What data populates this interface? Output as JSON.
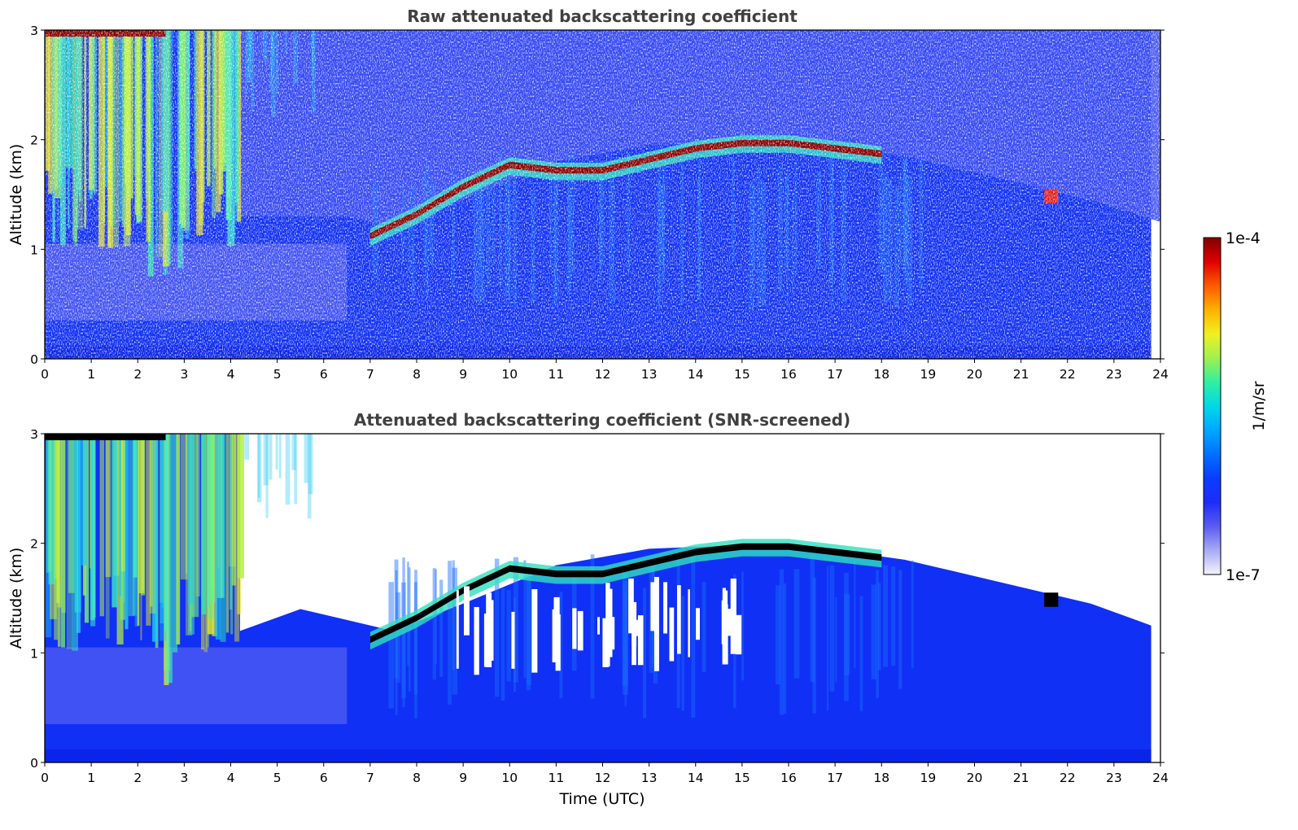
{
  "chart_data": [
    {
      "type": "heatmap",
      "title": "Raw attenuated backscattering coefficient",
      "xlabel": "",
      "ylabel": "Altitude (km)",
      "xlim": [
        0,
        24
      ],
      "ylim": [
        0,
        3
      ],
      "xticks": [
        0,
        1,
        2,
        3,
        4,
        5,
        6,
        7,
        8,
        9,
        10,
        11,
        12,
        13,
        14,
        15,
        16,
        17,
        18,
        19,
        20,
        21,
        22,
        23,
        24
      ],
      "yticks": [
        0,
        1,
        2,
        3
      ],
      "data_extent_x": [
        0,
        23.8
      ],
      "cloud_layer_top_km": [
        {
          "time": 7.0,
          "altitude": 1.15
        },
        {
          "time": 8.0,
          "altitude": 1.35
        },
        {
          "time": 9.0,
          "altitude": 1.6
        },
        {
          "time": 10.0,
          "altitude": 1.8
        },
        {
          "time": 11.0,
          "altitude": 1.75
        },
        {
          "time": 12.0,
          "altitude": 1.75
        },
        {
          "time": 13.0,
          "altitude": 1.85
        },
        {
          "time": 14.0,
          "altitude": 1.95
        },
        {
          "time": 15.0,
          "altitude": 2.0
        },
        {
          "time": 16.0,
          "altitude": 2.0
        },
        {
          "time": 17.0,
          "altitude": 1.95
        },
        {
          "time": 18.0,
          "altitude": 1.9
        }
      ],
      "screening": "raw"
    },
    {
      "type": "heatmap",
      "title": "Attenuated backscattering coefficient (SNR-screened)",
      "xlabel": "Time (UTC)",
      "ylabel": "Altitude (km)",
      "xlim": [
        0,
        24
      ],
      "ylim": [
        0,
        3
      ],
      "xticks": [
        0,
        1,
        2,
        3,
        4,
        5,
        6,
        7,
        8,
        9,
        10,
        11,
        12,
        13,
        14,
        15,
        16,
        17,
        18,
        19,
        20,
        21,
        22,
        23,
        24
      ],
      "yticks": [
        0,
        1,
        2,
        3
      ],
      "data_extent_x": [
        0,
        23.8
      ],
      "screening": "snr"
    }
  ],
  "colorbar": {
    "label": "1/m/sr",
    "max_label": "1e-4",
    "min_label": "1e-7",
    "colormap": [
      "#f4f4fc",
      "#a8aaf4",
      "#5a5cf0",
      "#1e2cf8",
      "#0a3cff",
      "#0070ff",
      "#00a8ff",
      "#00d8e8",
      "#30f0a0",
      "#a0f050",
      "#f0f020",
      "#ffb000",
      "#ff5a00",
      "#e00000",
      "#800000"
    ]
  },
  "colors": {
    "background": "#ffffff",
    "no_data": "#ffffff",
    "axis": "#000000",
    "title_text": "#404040",
    "base_blue": "#1030f5",
    "cloud_core": "#8b0000",
    "snr_saturated": "#000000"
  }
}
